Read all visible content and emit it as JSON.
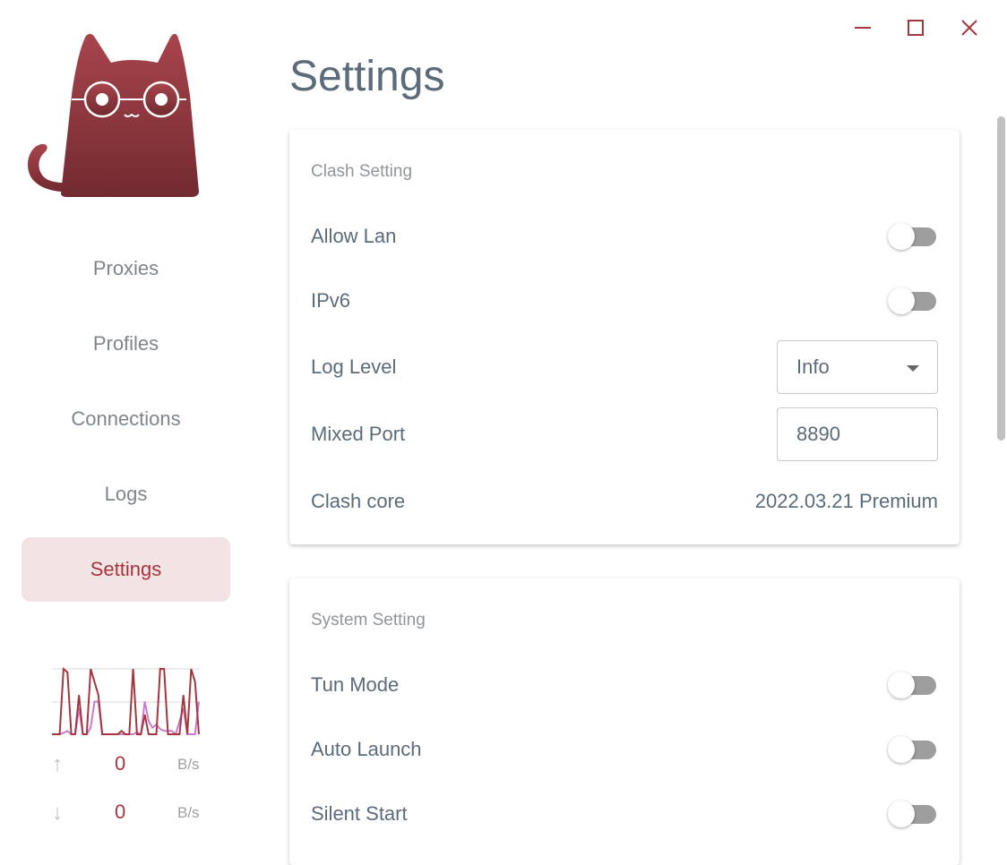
{
  "window_controls": {
    "minimize": "minimize-icon",
    "maximize": "maximize-icon",
    "close": "close-icon",
    "color": "#a5363d"
  },
  "sidebar": {
    "items": [
      {
        "label": "Proxies",
        "active": false
      },
      {
        "label": "Profiles",
        "active": false
      },
      {
        "label": "Connections",
        "active": false
      },
      {
        "label": "Logs",
        "active": false
      },
      {
        "label": "Settings",
        "active": true
      }
    ],
    "traffic": {
      "upload": {
        "value": "0",
        "unit": "B/s"
      },
      "download": {
        "value": "0",
        "unit": "B/s"
      },
      "chart_data": {
        "type": "line",
        "series": [
          {
            "color": "#a5363d",
            "values": [
              0,
              0,
              0,
              1,
              0.95,
              0,
              0,
              0.6,
              0,
              0,
              1,
              0.8,
              0.6,
              0,
              0,
              0,
              0,
              0,
              0.05,
              0,
              0,
              1,
              0,
              0,
              0.3,
              0,
              0,
              0,
              1,
              1,
              0,
              0,
              0,
              0,
              0.6,
              0,
              1,
              0.8,
              0
            ]
          },
          {
            "color": "#c77bd0",
            "values": [
              0,
              0,
              0,
              0.02,
              0.05,
              0,
              0,
              0.4,
              0,
              0,
              0.1,
              0.5,
              0.5,
              0,
              0,
              0,
              0,
              0,
              0,
              0,
              0,
              0,
              0.03,
              0,
              0.5,
              0.2,
              0.1,
              0.15,
              0.08,
              0.05,
              0.05,
              0.05,
              0,
              0.2,
              0.4,
              0,
              0,
              0,
              0.5
            ]
          }
        ]
      }
    }
  },
  "page": {
    "title": "Settings"
  },
  "clash_setting": {
    "title": "Clash Setting",
    "allow_lan": {
      "label": "Allow Lan",
      "on": false
    },
    "ipv6": {
      "label": "IPv6",
      "on": false
    },
    "log_level": {
      "label": "Log Level",
      "value": "Info"
    },
    "mixed_port": {
      "label": "Mixed Port",
      "value": "8890"
    },
    "clash_core": {
      "label": "Clash core",
      "value": "2022.03.21 Premium"
    }
  },
  "system_setting": {
    "title": "System Setting",
    "tun_mode": {
      "label": "Tun Mode",
      "on": false
    },
    "auto_launch": {
      "label": "Auto Launch",
      "on": false
    },
    "silent_start": {
      "label": "Silent Start",
      "on": false
    }
  }
}
